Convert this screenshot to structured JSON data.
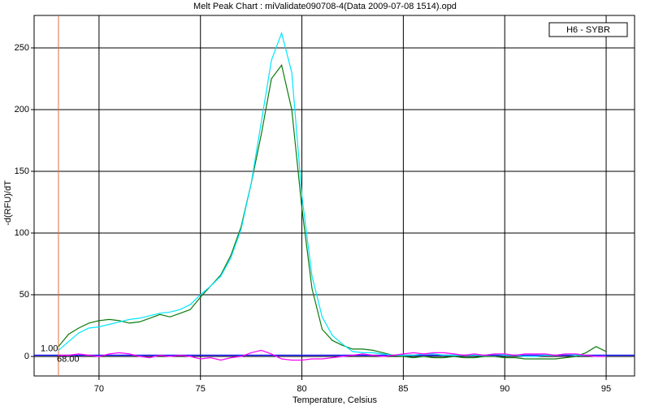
{
  "chart_data": {
    "type": "line",
    "title": "Melt Peak Chart : miValidate090708-4(Data 2009-07-08 1514).opd",
    "x_label": "Temperature, Celsius",
    "y_label": "-d(RFU)/dT",
    "legend": "H6 - SYBR",
    "legend_position": "top-right",
    "grid": true,
    "x": [
      68,
      68.5,
      69,
      69.5,
      70,
      70.5,
      71,
      71.5,
      72,
      72.5,
      73,
      73.5,
      74,
      74.5,
      75,
      75.5,
      76,
      76.5,
      77,
      77.5,
      78,
      78.5,
      79,
      79.5,
      80,
      80.5,
      81,
      81.5,
      82,
      82.5,
      83,
      83.5,
      84,
      84.5,
      85,
      85.5,
      86,
      86.5,
      87,
      87.5,
      88,
      88.5,
      89,
      89.5,
      90,
      90.5,
      91,
      91.5,
      92,
      92.5,
      93,
      93.5,
      94,
      94.5,
      95
    ],
    "series": [
      {
        "color": "#0d7a0d",
        "values": [
          8,
          18,
          23,
          27,
          29,
          30,
          29,
          27,
          28,
          31,
          34,
          32,
          35,
          38,
          48,
          57,
          66,
          82,
          105,
          140,
          180,
          225,
          236,
          200,
          120,
          55,
          22,
          13,
          9,
          6,
          6,
          5,
          3,
          1,
          0,
          -1,
          0,
          -1,
          -1,
          0,
          -1,
          -1,
          0,
          0,
          -1,
          -1,
          -2,
          -2,
          -2,
          -2,
          -1,
          0,
          3,
          8,
          4
        ]
      },
      {
        "color": "#00e5ff",
        "values": [
          5,
          12,
          19,
          23,
          24,
          26,
          28,
          30,
          31,
          33,
          35,
          36,
          38,
          42,
          50,
          57,
          65,
          80,
          103,
          140,
          190,
          240,
          262,
          230,
          130,
          65,
          32,
          17,
          10,
          4,
          3,
          3,
          2,
          1,
          1,
          1,
          2,
          2,
          1,
          1,
          1,
          1,
          1,
          2,
          1,
          1,
          0,
          0,
          1,
          1,
          2,
          1,
          1,
          0,
          0
        ]
      },
      {
        "color": "#ff00ff",
        "values": [
          1,
          1,
          2,
          1,
          0,
          2,
          3,
          2,
          0,
          -1,
          1,
          0,
          1,
          0,
          -2,
          -1,
          -3,
          -1,
          0,
          3,
          5,
          2,
          -2,
          -3,
          -3,
          -2,
          -2,
          -1,
          0,
          1,
          2,
          1,
          0,
          1,
          2,
          3,
          2,
          3,
          3,
          2,
          1,
          2,
          1,
          2,
          2,
          1,
          2,
          2,
          2,
          1,
          2,
          2,
          1,
          0,
          0
        ]
      }
    ],
    "threshold": {
      "value": 1,
      "label": "1.00"
    },
    "marker_x": {
      "value": 68,
      "label": "68.00"
    },
    "xlim": [
      66.8,
      96.4
    ],
    "xticks": [
      70,
      75,
      80,
      85,
      90,
      95
    ],
    "ylim": [
      -15.8,
      276.3
    ],
    "yticks": [
      0,
      50,
      100,
      150,
      200,
      250
    ]
  }
}
